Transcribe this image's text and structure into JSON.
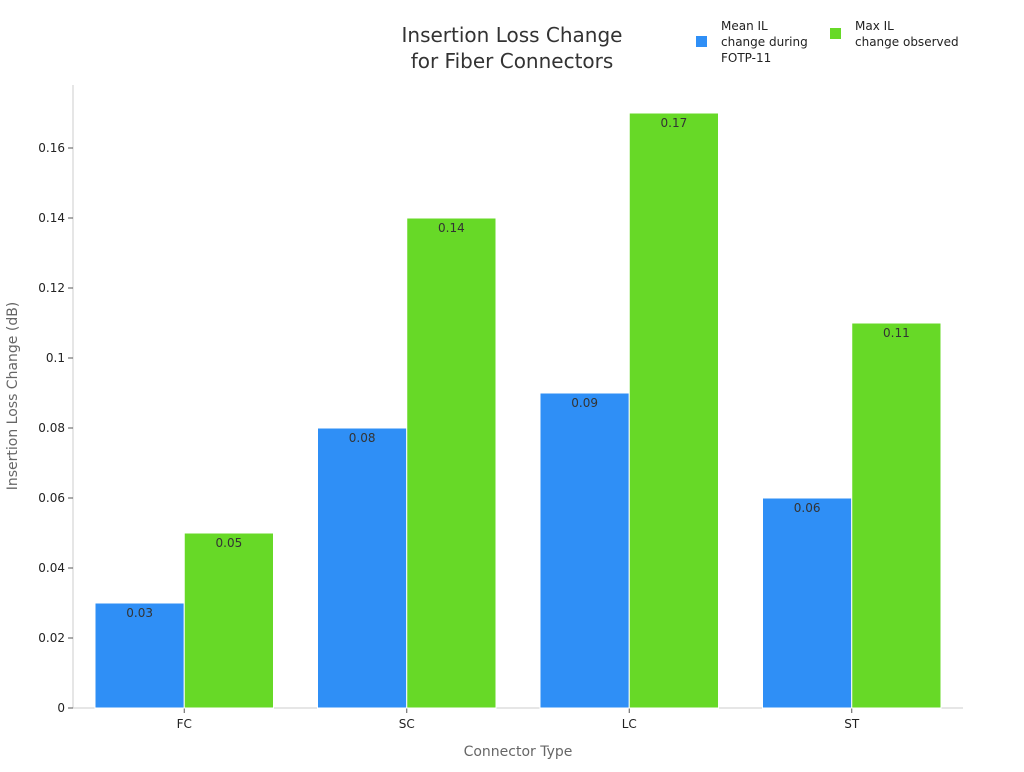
{
  "chart_data": {
    "type": "bar",
    "title_lines": [
      "Insertion Loss Change",
      "for Fiber Connectors"
    ],
    "xlabel": "Connector Type",
    "ylabel": "Insertion Loss Change (dB)",
    "categories": [
      "FC",
      "SC",
      "LC",
      "ST"
    ],
    "series": [
      {
        "name_lines": [
          "Mean IL",
          "change during",
          "FOTP-11"
        ],
        "color": "#2f8ff6",
        "values": [
          0.03,
          0.08,
          0.09,
          0.06
        ],
        "labels": [
          "0.03",
          "0.08",
          "0.09",
          "0.06"
        ]
      },
      {
        "name_lines": [
          "Max IL",
          "change observed"
        ],
        "color": "#67d927",
        "values": [
          0.05,
          0.14,
          0.17,
          0.11
        ],
        "labels": [
          "0.05",
          "0.14",
          "0.17",
          "0.11"
        ]
      }
    ],
    "ylim": [
      0,
      0.178
    ],
    "yticks": [
      0,
      0.02,
      0.04,
      0.06,
      0.08,
      0.1,
      0.12,
      0.14,
      0.16
    ],
    "ytick_labels": [
      "0",
      "0.02",
      "0.04",
      "0.06",
      "0.08",
      "0.1",
      "0.12",
      "0.14",
      "0.16"
    ],
    "grid": false,
    "legend_position": "top-right",
    "colors": {
      "axis": "#cccccc",
      "tick": "#555555"
    }
  }
}
